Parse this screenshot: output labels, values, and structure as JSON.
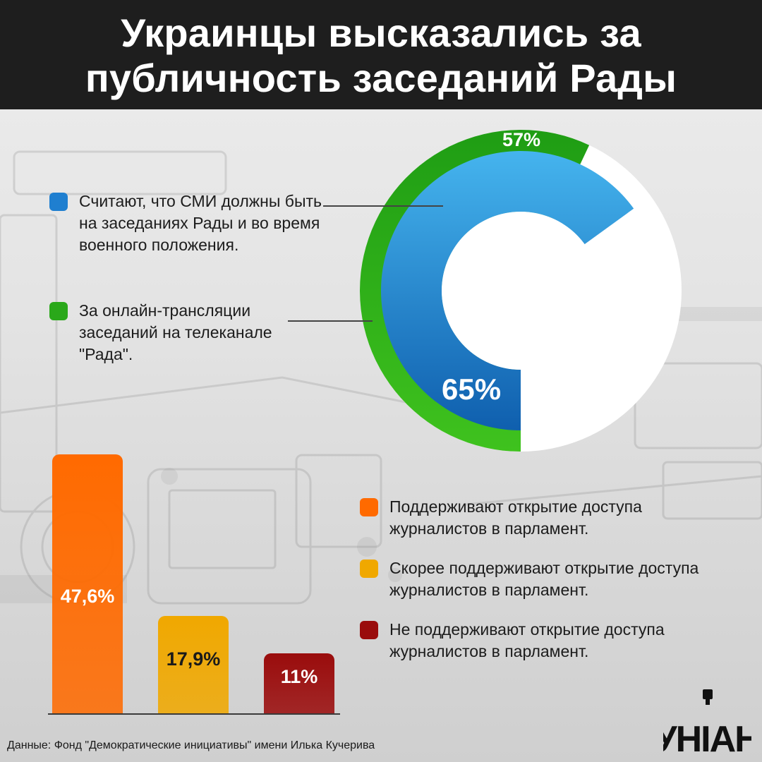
{
  "header": {
    "title_line1": "Украинцы высказались за",
    "title_line2": "публичность заседаний Рады"
  },
  "chart_data": [
    {
      "type": "pie",
      "subtype": "nested-donut",
      "series": [
        {
          "name": "Считают, что СМИ должны быть на заседаниях Рады и во время военного положения.",
          "value": 65,
          "label": "65%",
          "color": "#1f7fd0",
          "ring": "inner"
        },
        {
          "name": "За онлайн-трансляции заседаний на телеканале \"Рада\".",
          "value": 57,
          "label": "57%",
          "color": "#2aa81a",
          "ring": "outer"
        }
      ]
    },
    {
      "type": "bar",
      "categories": [
        "Поддерживают открытие доступа журналистов в парламент.",
        "Скорее поддерживают открытие доступа журналистов в парламент.",
        "Не поддерживают открытие доступа журналистов в парламент."
      ],
      "values": [
        47.6,
        17.9,
        11
      ],
      "labels": [
        "47,6%",
        "17,9%",
        "11%"
      ],
      "colors": [
        "#ff6a00",
        "#f0a800",
        "#9a0c0c"
      ],
      "label_colors": [
        "#ffffff",
        "#1a1a1a",
        "#ffffff"
      ],
      "ylim": [
        0,
        50
      ]
    }
  ],
  "legend_top": [
    {
      "text": "Считают, что СМИ должны быть на заседаниях Рады и во время военного положения.",
      "color": "#1f7fd0"
    },
    {
      "text": "За онлайн-трансляции заседаний на телеканале \"Рада\".",
      "color": "#2aa81a"
    }
  ],
  "legend_bottom": [
    {
      "text": "Поддерживают открытие доступа журналистов в парламент.",
      "color": "#ff6a00"
    },
    {
      "text": "Скорее поддерживают открытие доступа журналистов в парламент.",
      "color": "#f0a800"
    },
    {
      "text": "Не поддерживают открытие доступа журналистов в парламент.",
      "color": "#9a0c0c"
    }
  ],
  "source": "Данные: Фонд \"Демократические инициативы\" имени Илька Кучерива",
  "logo_text": "УНІАН"
}
